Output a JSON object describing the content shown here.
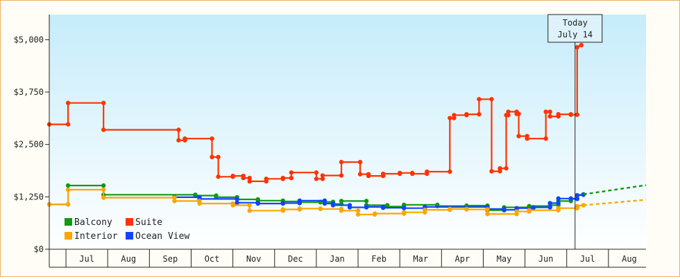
{
  "chart_data": {
    "type": "line",
    "title": "",
    "xlabel": "",
    "ylabel": "",
    "y_ticks": [
      "$0",
      "$1,250",
      "$2,500",
      "$3,750",
      "$5,000"
    ],
    "ylim": [
      0,
      5600
    ],
    "x_months": [
      "Jul",
      "Aug",
      "Sep",
      "Oct",
      "Nov",
      "Dec",
      "Jan",
      "Feb",
      "Mar",
      "Apr",
      "May",
      "Jun",
      "Jul",
      "Aug"
    ],
    "x_unit": "months since mid-June",
    "xlim": [
      0,
      14.3
    ],
    "today": {
      "label1": "Today",
      "label2": "July 14",
      "x": 12.6
    },
    "legend": {
      "placement": "bottom-left"
    },
    "series": [
      {
        "name": "Suite",
        "color": "#ff3300",
        "points": [
          [
            0,
            2980
          ],
          [
            0.45,
            2980
          ],
          [
            0.45,
            3490
          ],
          [
            1.3,
            3490
          ],
          [
            1.3,
            2850
          ],
          [
            3.1,
            2850
          ],
          [
            3.1,
            2600
          ],
          [
            3.25,
            2600
          ],
          [
            3.25,
            2640
          ],
          [
            3.9,
            2640
          ],
          [
            3.9,
            2200
          ],
          [
            4.05,
            2200
          ],
          [
            4.05,
            1730
          ],
          [
            4.4,
            1730
          ],
          [
            4.4,
            1750
          ],
          [
            4.65,
            1750
          ],
          [
            4.65,
            1700
          ],
          [
            4.8,
            1700
          ],
          [
            4.8,
            1620
          ],
          [
            5.2,
            1620
          ],
          [
            5.2,
            1680
          ],
          [
            5.6,
            1680
          ],
          [
            5.6,
            1700
          ],
          [
            5.8,
            1700
          ],
          [
            5.8,
            1830
          ],
          [
            6.4,
            1830
          ],
          [
            6.4,
            1680
          ],
          [
            6.55,
            1680
          ],
          [
            6.55,
            1760
          ],
          [
            7.0,
            1760
          ],
          [
            7.0,
            2080
          ],
          [
            7.45,
            2080
          ],
          [
            7.45,
            1790
          ],
          [
            7.65,
            1790
          ],
          [
            7.65,
            1750
          ],
          [
            8.0,
            1750
          ],
          [
            8.0,
            1800
          ],
          [
            8.4,
            1800
          ],
          [
            8.4,
            1820
          ],
          [
            8.7,
            1820
          ],
          [
            8.7,
            1800
          ],
          [
            9.05,
            1800
          ],
          [
            9.05,
            1850
          ],
          [
            9.6,
            1850
          ],
          [
            9.6,
            3130
          ],
          [
            9.7,
            3130
          ],
          [
            9.7,
            3200
          ],
          [
            10.0,
            3200
          ],
          [
            10.0,
            3220
          ],
          [
            10.3,
            3220
          ],
          [
            10.3,
            3580
          ],
          [
            10.6,
            3580
          ],
          [
            10.6,
            1860
          ],
          [
            10.8,
            1860
          ],
          [
            10.8,
            1930
          ],
          [
            10.95,
            1930
          ],
          [
            10.95,
            3200
          ],
          [
            11.0,
            3200
          ],
          [
            11.0,
            3280
          ],
          [
            11.2,
            3280
          ],
          [
            11.2,
            3230
          ],
          [
            11.25,
            3230
          ],
          [
            11.25,
            2700
          ],
          [
            11.45,
            2700
          ],
          [
            11.45,
            2640
          ],
          [
            11.9,
            2640
          ],
          [
            11.9,
            3280
          ],
          [
            12.0,
            3280
          ],
          [
            12.0,
            3170
          ],
          [
            12.2,
            3170
          ],
          [
            12.2,
            3220
          ],
          [
            12.5,
            3220
          ],
          [
            12.5,
            3210
          ],
          [
            12.65,
            3210
          ],
          [
            12.65,
            4820
          ],
          [
            12.75,
            4870
          ]
        ]
      },
      {
        "name": "Balcony",
        "color": "#119911",
        "points": [
          [
            0,
            1070
          ],
          [
            0.45,
            1070
          ],
          [
            0.45,
            1520
          ],
          [
            1.3,
            1520
          ],
          [
            1.3,
            1300
          ],
          [
            3.5,
            1300
          ],
          [
            3.5,
            1280
          ],
          [
            4.0,
            1280
          ],
          [
            4.0,
            1240
          ],
          [
            4.5,
            1240
          ],
          [
            4.5,
            1190
          ],
          [
            5.0,
            1190
          ],
          [
            5.0,
            1160
          ],
          [
            5.6,
            1160
          ],
          [
            5.6,
            1140
          ],
          [
            6.0,
            1140
          ],
          [
            6.0,
            1120
          ],
          [
            6.5,
            1120
          ],
          [
            6.5,
            1130
          ],
          [
            6.8,
            1130
          ],
          [
            6.8,
            1080
          ],
          [
            7.0,
            1080
          ],
          [
            7.0,
            1150
          ],
          [
            7.6,
            1150
          ],
          [
            7.6,
            1050
          ],
          [
            8.1,
            1050
          ],
          [
            8.1,
            1020
          ],
          [
            8.5,
            1020
          ],
          [
            8.5,
            1060
          ],
          [
            9.3,
            1060
          ],
          [
            9.3,
            1030
          ],
          [
            10.0,
            1030
          ],
          [
            10.0,
            1040
          ],
          [
            10.5,
            1040
          ],
          [
            10.5,
            930
          ],
          [
            10.9,
            930
          ],
          [
            10.9,
            1000
          ],
          [
            11.5,
            1000
          ],
          [
            11.5,
            1030
          ],
          [
            12.0,
            1030
          ],
          [
            12.0,
            1050
          ],
          [
            12.2,
            1050
          ],
          [
            12.2,
            1150
          ],
          [
            12.5,
            1150
          ],
          [
            12.5,
            1210
          ],
          [
            12.65,
            1210
          ],
          [
            12.65,
            1290
          ],
          [
            12.8,
            1310
          ]
        ]
      },
      {
        "name": "Ocean View",
        "color": "#1144ff",
        "points": [
          [
            3.0,
            1240
          ],
          [
            3.6,
            1240
          ],
          [
            3.6,
            1200
          ],
          [
            4.5,
            1200
          ],
          [
            4.5,
            1110
          ],
          [
            5.0,
            1110
          ],
          [
            5.0,
            1090
          ],
          [
            5.6,
            1090
          ],
          [
            5.6,
            1100
          ],
          [
            6.0,
            1100
          ],
          [
            6.0,
            1160
          ],
          [
            6.6,
            1160
          ],
          [
            6.6,
            1090
          ],
          [
            6.8,
            1090
          ],
          [
            6.8,
            1050
          ],
          [
            7.2,
            1050
          ],
          [
            7.2,
            1000
          ],
          [
            7.6,
            1000
          ],
          [
            7.6,
            1010
          ],
          [
            8.0,
            1010
          ],
          [
            8.0,
            990
          ],
          [
            8.5,
            990
          ],
          [
            8.5,
            980
          ],
          [
            9.0,
            980
          ],
          [
            9.0,
            1010
          ],
          [
            10.5,
            1010
          ],
          [
            10.5,
            960
          ],
          [
            10.9,
            960
          ],
          [
            10.9,
            940
          ],
          [
            11.2,
            940
          ],
          [
            11.2,
            980
          ],
          [
            11.6,
            980
          ],
          [
            11.6,
            1000
          ],
          [
            12.0,
            1000
          ],
          [
            12.0,
            1100
          ],
          [
            12.2,
            1100
          ],
          [
            12.2,
            1210
          ],
          [
            12.5,
            1210
          ],
          [
            12.5,
            1200
          ],
          [
            12.65,
            1200
          ],
          [
            12.65,
            1280
          ],
          [
            12.8,
            1300
          ]
        ]
      },
      {
        "name": "Interior",
        "color": "#ffa500",
        "points": [
          [
            0,
            1070
          ],
          [
            0.45,
            1070
          ],
          [
            0.45,
            1420
          ],
          [
            1.3,
            1420
          ],
          [
            1.3,
            1230
          ],
          [
            3.0,
            1230
          ],
          [
            3.0,
            1150
          ],
          [
            3.6,
            1150
          ],
          [
            3.6,
            1090
          ],
          [
            4.4,
            1090
          ],
          [
            4.4,
            1050
          ],
          [
            4.8,
            1050
          ],
          [
            4.8,
            920
          ],
          [
            5.6,
            920
          ],
          [
            5.6,
            950
          ],
          [
            6.0,
            950
          ],
          [
            6.0,
            970
          ],
          [
            6.5,
            970
          ],
          [
            6.5,
            960
          ],
          [
            7.0,
            960
          ],
          [
            7.0,
            920
          ],
          [
            7.4,
            920
          ],
          [
            7.4,
            830
          ],
          [
            7.8,
            830
          ],
          [
            7.8,
            850
          ],
          [
            8.5,
            850
          ],
          [
            8.5,
            880
          ],
          [
            9.0,
            880
          ],
          [
            9.0,
            940
          ],
          [
            9.6,
            940
          ],
          [
            9.6,
            960
          ],
          [
            10.0,
            960
          ],
          [
            10.0,
            950
          ],
          [
            10.5,
            950
          ],
          [
            10.5,
            840
          ],
          [
            11.2,
            840
          ],
          [
            11.2,
            900
          ],
          [
            11.5,
            900
          ],
          [
            11.5,
            930
          ],
          [
            12.2,
            930
          ],
          [
            12.2,
            980
          ],
          [
            12.65,
            980
          ],
          [
            12.65,
            1030
          ],
          [
            12.8,
            1050
          ]
        ]
      }
    ],
    "forecast": [
      {
        "name": "Balcony",
        "color": "#119911",
        "points": [
          [
            12.8,
            1310
          ],
          [
            14.3,
            1530
          ]
        ]
      },
      {
        "name": "Interior",
        "color": "#ffa500",
        "points": [
          [
            12.8,
            1050
          ],
          [
            14.3,
            1180
          ]
        ]
      }
    ]
  }
}
